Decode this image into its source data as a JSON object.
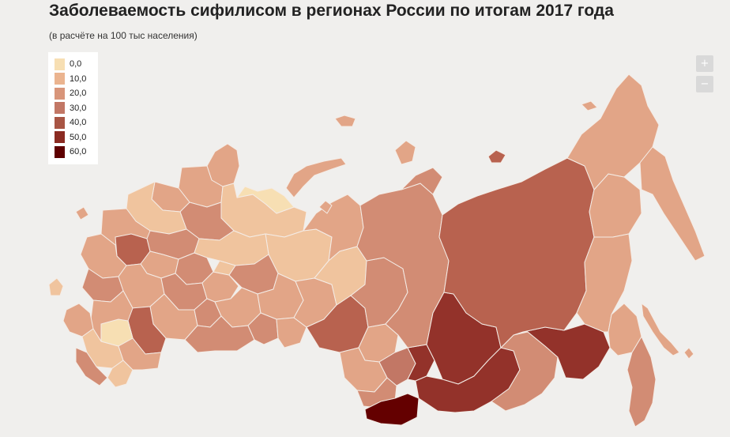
{
  "header": {
    "title": "Заболеваемость сифилисом в регионах России по итогам 2017 года",
    "subtitle": "(в расчёте на 100 тыс населения)"
  },
  "legend": {
    "items": [
      {
        "label": "0,0",
        "color": "#f7dfb3"
      },
      {
        "label": "10,0",
        "color": "#ebb48f"
      },
      {
        "label": "20,0",
        "color": "#d8957a"
      },
      {
        "label": "30,0",
        "color": "#c27765"
      },
      {
        "label": "40,0",
        "color": "#a85544"
      },
      {
        "label": "50,0",
        "color": "#8b2b22"
      },
      {
        "label": "60,0",
        "color": "#5e0000"
      }
    ]
  },
  "zoom": {
    "in_label": "+",
    "out_label": "−"
  },
  "colors": {
    "c0": "#f7dfb3",
    "c1": "#f0c49e",
    "c2": "#e2a587",
    "c3": "#d28c74",
    "c4": "#b8624f",
    "c5": "#93322a",
    "c6": "#640000",
    "background": "#f0efed"
  }
}
